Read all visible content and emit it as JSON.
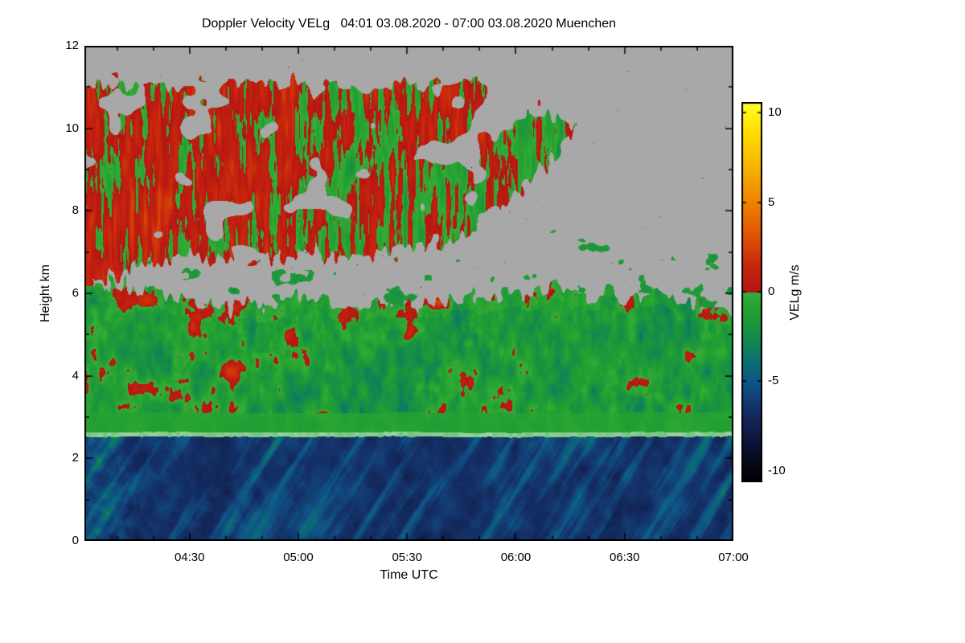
{
  "chart_data": {
    "type": "heatmap",
    "title": "Doppler Velocity VELg   04:01 03.08.2020 - 07:00 03.08.2020 Muenchen",
    "quantity": "Doppler Velocity VELg",
    "time_start": "04:01 03.08.2020",
    "time_end": "07:00 03.08.2020",
    "station": "Muenchen",
    "xlabel": "Time UTC",
    "ylabel": "Height km",
    "x_range_minutes": [
      241,
      420
    ],
    "x_ticks": [
      {
        "label": "04:30",
        "minutes": 270
      },
      {
        "label": "05:00",
        "minutes": 300
      },
      {
        "label": "05:30",
        "minutes": 330
      },
      {
        "label": "06:00",
        "minutes": 360
      },
      {
        "label": "06:30",
        "minutes": 390
      },
      {
        "label": "07:00",
        "minutes": 420
      }
    ],
    "x_minor_step_minutes": 10,
    "y_range_km": [
      0,
      12
    ],
    "y_ticks_km": [
      0,
      2,
      4,
      6,
      8,
      10,
      12
    ],
    "y_minor_step_km": 1,
    "no_data_color": "#a8a8a8",
    "colorbar": {
      "label": "VELg m/s",
      "ticks": [
        10,
        5,
        0,
        -5,
        -10
      ],
      "range": [
        -10.6,
        10.6
      ],
      "stops_negative": [
        {
          "v": -10.6,
          "color": "#000000"
        },
        {
          "v": -9.5,
          "color": "#08081a"
        },
        {
          "v": -8.0,
          "color": "#0f1941"
        },
        {
          "v": -6.5,
          "color": "#143269"
        },
        {
          "v": -5.0,
          "color": "#0f5587"
        },
        {
          "v": -4.0,
          "color": "#0a6e73"
        },
        {
          "v": -2.5,
          "color": "#148b4b"
        },
        {
          "v": -1.0,
          "color": "#23a032"
        },
        {
          "v": 0.0,
          "color": "#37af37"
        }
      ],
      "stops_positive": [
        {
          "v": 0.0,
          "color": "#b41414"
        },
        {
          "v": 1.5,
          "color": "#c8280c"
        },
        {
          "v": 3.0,
          "color": "#dc5008"
        },
        {
          "v": 5.0,
          "color": "#ee8200"
        },
        {
          "v": 7.0,
          "color": "#f8b400"
        },
        {
          "v": 9.0,
          "color": "#ffe100"
        },
        {
          "v": 10.6,
          "color": "#ffff2d"
        }
      ]
    },
    "features": {
      "bright_band_km": 2.56,
      "melting_layer_line": {
        "height_km": 2.56,
        "appearance": "thin pale light-green line across full width"
      },
      "rain_layer": {
        "base_velocity_ms": -6.6,
        "streak_max_velocity_ms": -2.7,
        "description": "dark navy precipitation below bright band with slanted lighter teal-green fall streaks"
      },
      "cloud_lower": {
        "base_km": 2.6,
        "top_km_mean": 5.95,
        "base_velocity_ms": -1.5,
        "description": "continuous green layer with scattered orange-red patches, ragged reddish top edge"
      },
      "cloud_upper": {
        "bottom_km_start": 6.3,
        "bottom_rise_km": 2.0,
        "top_km_start": 11.3,
        "top_slope_km": -0.6,
        "taper_start_frac": 0.62,
        "description": "mottled green/orange/red ice cloud from left edge tapering to a point near 06:15, more red on left half"
      },
      "no_data": "gray background above clouds and in the gap between layers, with sparse colored speckles"
    }
  }
}
